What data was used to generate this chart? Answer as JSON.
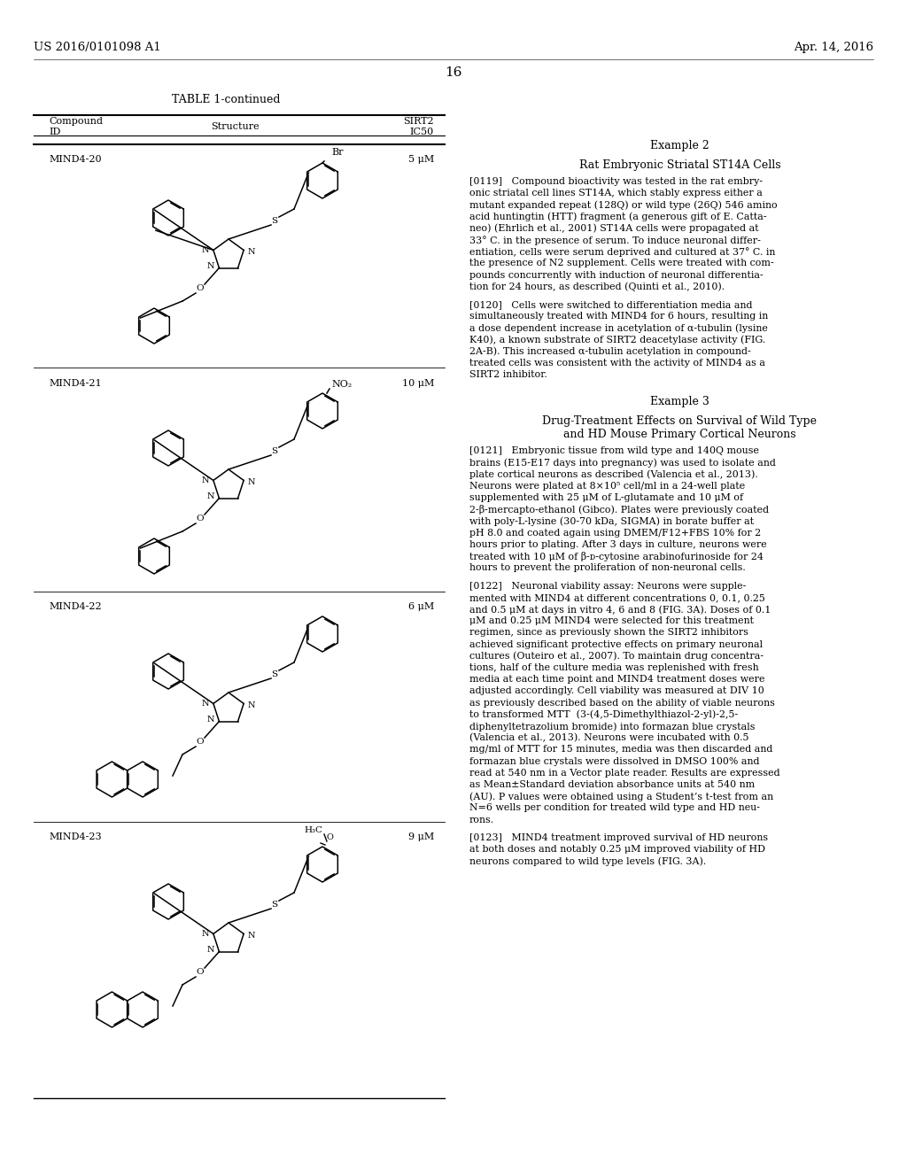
{
  "bg_color": "#ffffff",
  "header_left": "US 2016/0101098 A1",
  "header_right": "Apr. 14, 2016",
  "page_number": "16",
  "table_title": "TABLE 1-continued",
  "table_col1_line1": "Compound",
  "table_col1_line2": "ID",
  "table_col2": "Structure",
  "table_col3_line1": "SIRT2",
  "table_col3_line2": "IC50",
  "mind4_20_id": "MIND4-20",
  "mind4_20_ic50": "5 μM",
  "mind4_20_sub": "Br",
  "mind4_21_id": "MIND4-21",
  "mind4_21_ic50": "10 μM",
  "mind4_21_sub": "NO₂",
  "mind4_22_id": "MIND4-22",
  "mind4_22_ic50": "6 μM",
  "mind4_23_id": "MIND4-23",
  "mind4_23_ic50": "9 μM",
  "mind4_23_sub": "H₃C",
  "ex2_title": "Example 2",
  "ex2_subtitle": "Rat Embryonic Striatal ST14A Cells",
  "para119_lines": [
    "[0119]   Compound bioactivity was tested in the rat embry-",
    "onic striatal cell lines ST14A, which stably express either a",
    "mutant expanded repeat (128Q) or wild type (26Q) 546 amino",
    "acid huntingtin (HTT) fragment (a generous gift of E. Catta-",
    "neo) (Ehrlich et al., 2001) ST14A cells were propagated at",
    "33° C. in the presence of serum. To induce neuronal differ-",
    "entiation, cells were serum deprived and cultured at 37° C. in",
    "the presence of N2 supplement. Cells were treated with com-",
    "pounds concurrently with induction of neuronal differentia-",
    "tion for 24 hours, as described (Quinti et al., 2010)."
  ],
  "para120_lines": [
    "[0120]   Cells were switched to differentiation media and",
    "simultaneously treated with MIND4 for 6 hours, resulting in",
    "a dose dependent increase in acetylation of α-tubulin (lysine",
    "K40), a known substrate of SIRT2 deacetylase activity (FIG.",
    "2A-B). This increased α-tubulin acetylation in compound-",
    "treated cells was consistent with the activity of MIND4 as a",
    "SIRT2 inhibitor."
  ],
  "ex3_title": "Example 3",
  "ex3_subtitle1": "Drug-Treatment Effects on Survival of Wild Type",
  "ex3_subtitle2": "and HD Mouse Primary Cortical Neurons",
  "para121_lines": [
    "[0121]   Embryonic tissue from wild type and 140Q mouse",
    "brains (E15-E17 days into pregnancy) was used to isolate and",
    "plate cortical neurons as described (Valencia et al., 2013).",
    "Neurons were plated at 8×10⁵ cell/ml in a 24-well plate",
    "supplemented with 25 μM of L-glutamate and 10 μM of",
    "2-β-mercapto-ethanol (Gibco). Plates were previously coated",
    "with poly-L-lysine (30-70 kDa, SIGMA) in borate buffer at",
    "pH 8.0 and coated again using DMEM/F12+FBS 10% for 2",
    "hours prior to plating. After 3 days in culture, neurons were",
    "treated with 10 μM of β-ᴅ-cytosine arabinofurinoside for 24",
    "hours to prevent the proliferation of non-neuronal cells."
  ],
  "para122_lines": [
    "[0122]   Neuronal viability assay: Neurons were supple-",
    "mented with MIND4 at different concentrations 0, 0.1, 0.25",
    "and 0.5 μM at days in vitro 4, 6 and 8 (FIG. 3A). Doses of 0.1",
    "μM and 0.25 μM MIND4 were selected for this treatment",
    "regimen, since as previously shown the SIRT2 inhibitors",
    "achieved significant protective effects on primary neuronal",
    "cultures (Outeiro et al., 2007). To maintain drug concentra-",
    "tions, half of the culture media was replenished with fresh",
    "media at each time point and MIND4 treatment doses were",
    "adjusted accordingly. Cell viability was measured at DIV 10",
    "as previously described based on the ability of viable neurons",
    "to transformed MTT  (3-(4,5-Dimethylthiazol-2-yl)-2,5-",
    "diphenyltetrazolium bromide) into formazan blue crystals",
    "(Valencia et al., 2013). Neurons were incubated with 0.5",
    "mg/ml of MTT for 15 minutes, media was then discarded and",
    "formazan blue crystals were dissolved in DMSO 100% and",
    "read at 540 nm in a Vector plate reader. Results are expressed",
    "as Mean±Standard deviation absorbance units at 540 nm",
    "(AU). P values were obtained using a Student’s t-test from an",
    "N=6 wells per condition for treated wild type and HD neu-",
    "rons."
  ],
  "para123_lines": [
    "[0123]   MIND4 treatment improved survival of HD neurons",
    "at both doses and notably 0.25 μM improved viability of HD",
    "neurons compared to wild type levels (FIG. 3A)."
  ]
}
